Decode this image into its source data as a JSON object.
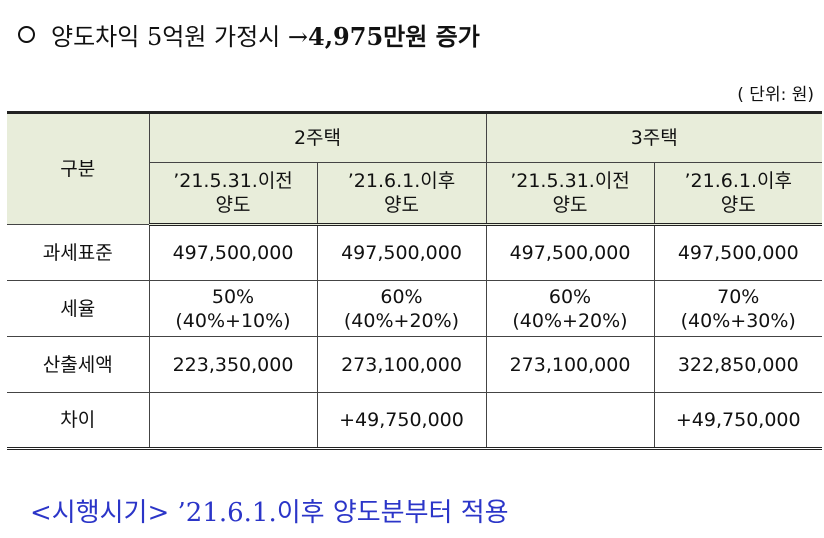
{
  "heading": {
    "text": "양도차익 5억원 가정시 → ",
    "highlight": "4,975만원 증가",
    "icon": "circle-icon"
  },
  "unit": "( 단위: 원)",
  "table": {
    "header_category": "구분",
    "group_2house": "2주택",
    "group_3house": "3주택",
    "sub_before_l1": "’21.5.31.이전",
    "sub_before_l2": "양도",
    "sub_after_l1": "’21.6.1.이후",
    "sub_after_l2": "양도",
    "rows": [
      {
        "label": "과세표준",
        "c1": "497,500,000",
        "c2": "497,500,000",
        "c3": "497,500,000",
        "c4": "497,500,000"
      },
      {
        "label": "세율",
        "c1a": "50%",
        "c1b": "(40%+10%)",
        "c2a": "60%",
        "c2b": "(40%+20%)",
        "c3a": "60%",
        "c3b": "(40%+20%)",
        "c4a": "70%",
        "c4b": "(40%+30%)"
      },
      {
        "label": "산출세액",
        "c1": "223,350,000",
        "c2": "273,100,000",
        "c3": "273,100,000",
        "c4": "322,850,000"
      },
      {
        "label": "차이",
        "c1": "",
        "c2": "+49,750,000",
        "c3": "",
        "c4": "+49,750,000"
      }
    ]
  },
  "footer": "<시행시기> ’21.6.1.이후 양도분부터 적용"
}
